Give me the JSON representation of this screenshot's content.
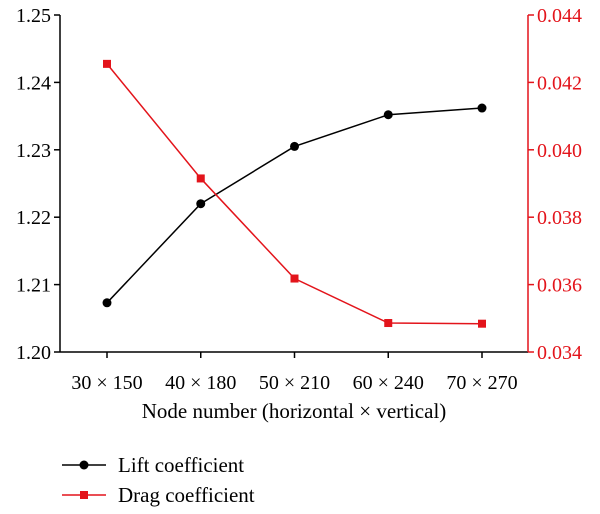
{
  "chart_data": {
    "type": "line",
    "xlabel": "Node number (horizontal × vertical)",
    "categories": [
      "30 × 150",
      "40 × 180",
      "50 × 210",
      "60 × 240",
      "70 × 270"
    ],
    "y_left": {
      "ylim": [
        1.2,
        1.25
      ],
      "ticks": [
        "1.20",
        "1.21",
        "1.22",
        "1.23",
        "1.24",
        "1.25"
      ],
      "color": "#000000"
    },
    "y_right": {
      "ylim": [
        0.034,
        0.044
      ],
      "ticks": [
        "0.034",
        "0.036",
        "0.038",
        "0.040",
        "0.042",
        "0.044"
      ],
      "color": "#e3141b"
    },
    "series": [
      {
        "name": "Lift coefficient",
        "axis": "left",
        "marker": "circle",
        "color": "#000000",
        "values": [
          1.2073,
          1.222,
          1.2305,
          1.2352,
          1.2362
        ]
      },
      {
        "name": "Drag coefficient",
        "axis": "right",
        "marker": "square",
        "color": "#e3141b",
        "values": [
          0.04255,
          0.03915,
          0.03618,
          0.03486,
          0.03484
        ]
      }
    ],
    "grid": false,
    "legend_position": "bottom-left"
  }
}
